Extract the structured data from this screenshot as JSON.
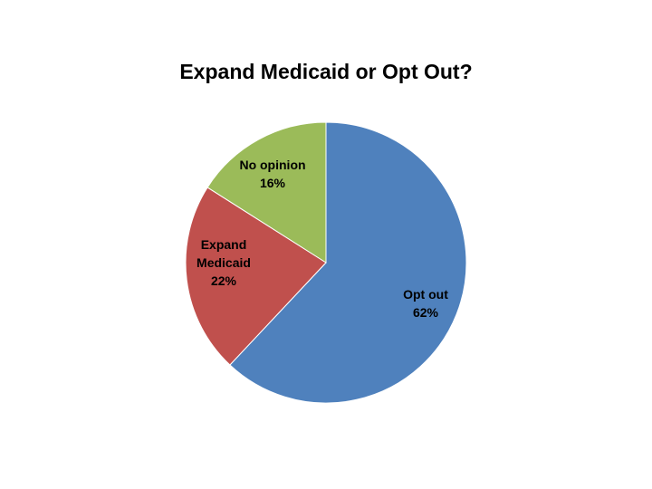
{
  "chart_data": {
    "type": "pie",
    "title": "Expand Medicaid or Opt Out?",
    "categories": [
      "Opt out",
      "Expand Medicaid",
      "No opinion"
    ],
    "values": [
      62,
      22,
      16
    ],
    "labels": [
      {
        "lines": [
          "Opt out",
          "62%"
        ]
      },
      {
        "lines": [
          "Expand",
          "Medicaid",
          "22%"
        ]
      },
      {
        "lines": [
          "No opinion",
          "16%"
        ]
      }
    ],
    "colors": [
      "#4F81BD",
      "#C0504D",
      "#9BBB59"
    ],
    "legend": "none"
  }
}
